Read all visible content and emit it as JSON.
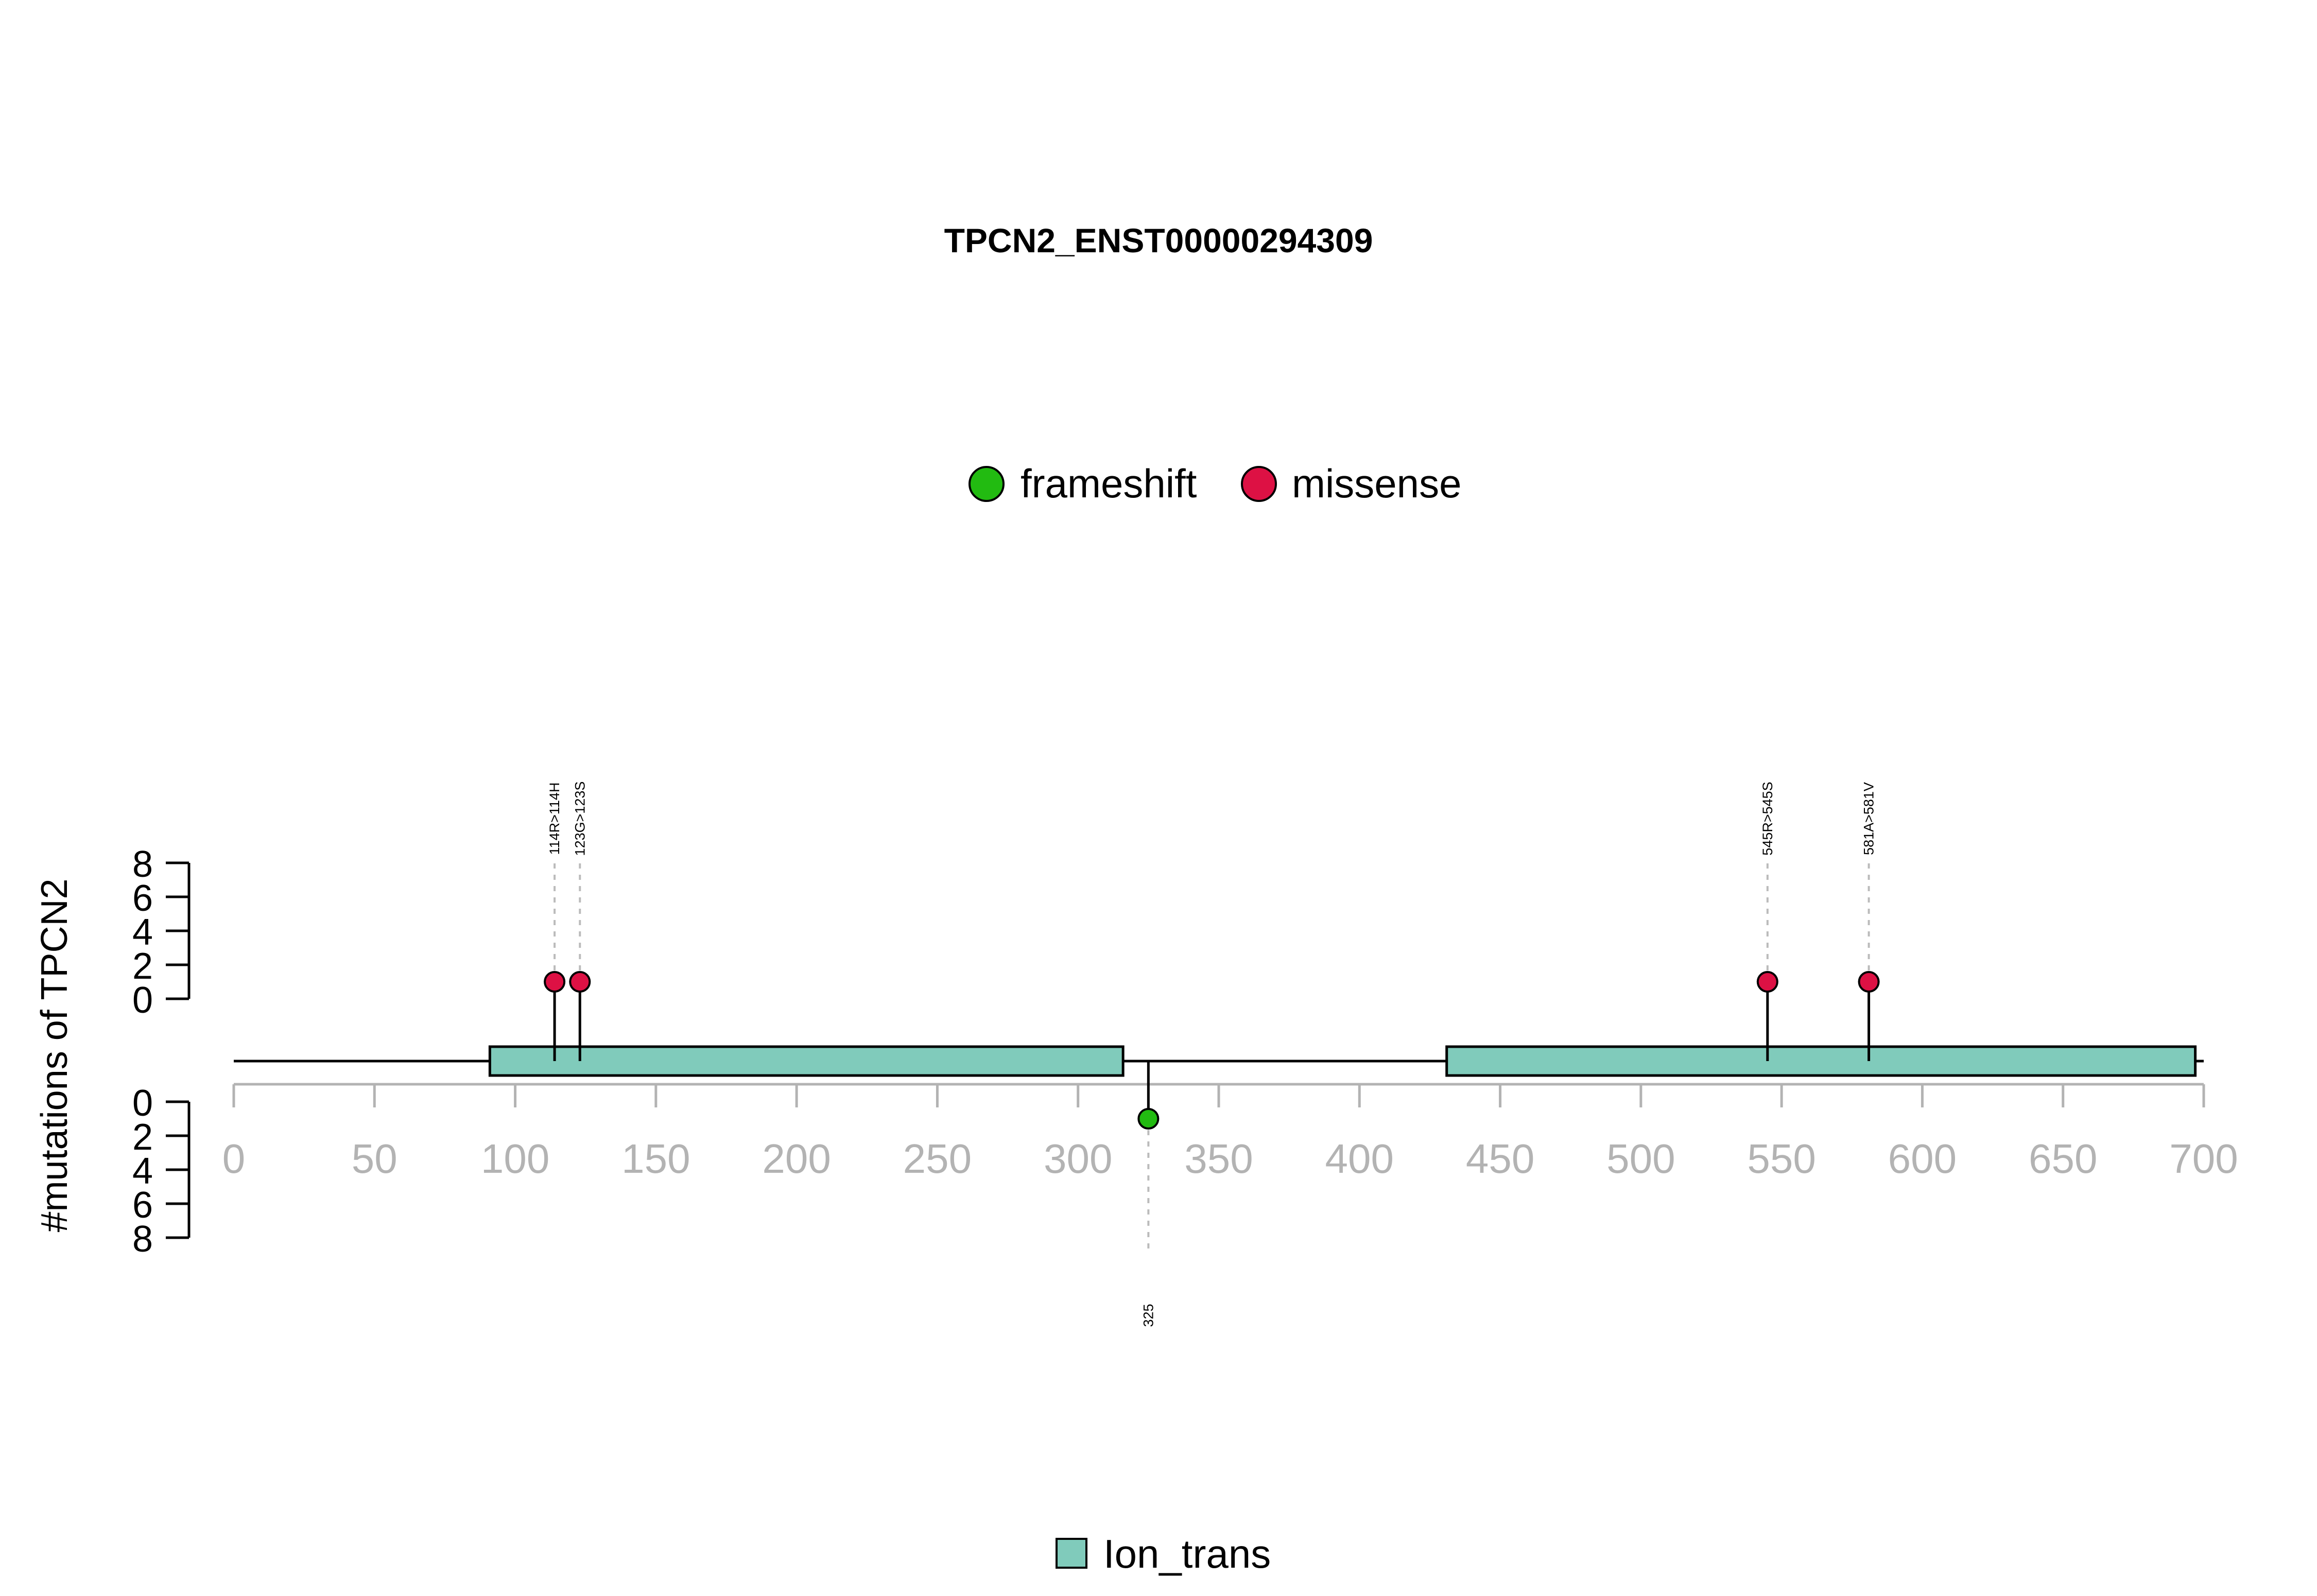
{
  "chart_data": {
    "type": "lollipop",
    "title": "TPCN2_ENST00000294309",
    "ylabel": "#mutations of TPCN2",
    "xlim": [
      0,
      700
    ],
    "x_ticks": [
      0,
      50,
      100,
      150,
      200,
      250,
      300,
      350,
      400,
      450,
      500,
      550,
      600,
      650,
      700
    ],
    "y_ticks": [
      0,
      2,
      4,
      6,
      8
    ],
    "ylim": [
      0,
      8
    ],
    "legend": [
      {
        "label": "frameshift",
        "color": "#22bb11"
      },
      {
        "label": "missense",
        "color": "#dd1144"
      }
    ],
    "domain_legend": [
      {
        "label": "Ion_trans",
        "color": "#80cbbb"
      }
    ],
    "domains": [
      {
        "name": "Ion_trans",
        "start": 91,
        "end": 316
      },
      {
        "name": "Ion_trans",
        "start": 431,
        "end": 697
      }
    ],
    "protein_length": 700,
    "series": [
      {
        "name": "missense",
        "points": [
          {
            "position": 114,
            "count": 1,
            "label": "114R>114H",
            "side": "top"
          },
          {
            "position": 123,
            "count": 1,
            "label": "123G>123S",
            "side": "top"
          },
          {
            "position": 545,
            "count": 1,
            "label": "545R>545S",
            "side": "top"
          },
          {
            "position": 581,
            "count": 1,
            "label": "581A>581V",
            "side": "top"
          }
        ]
      },
      {
        "name": "frameshift",
        "points": [
          {
            "position": 325,
            "count": 1,
            "label": "325",
            "side": "bottom"
          }
        ]
      }
    ],
    "colors": {
      "axis_gray": "#b3b3b3",
      "guide_gray": "#bbbbbb",
      "domain_fill": "#80cbbb"
    }
  }
}
